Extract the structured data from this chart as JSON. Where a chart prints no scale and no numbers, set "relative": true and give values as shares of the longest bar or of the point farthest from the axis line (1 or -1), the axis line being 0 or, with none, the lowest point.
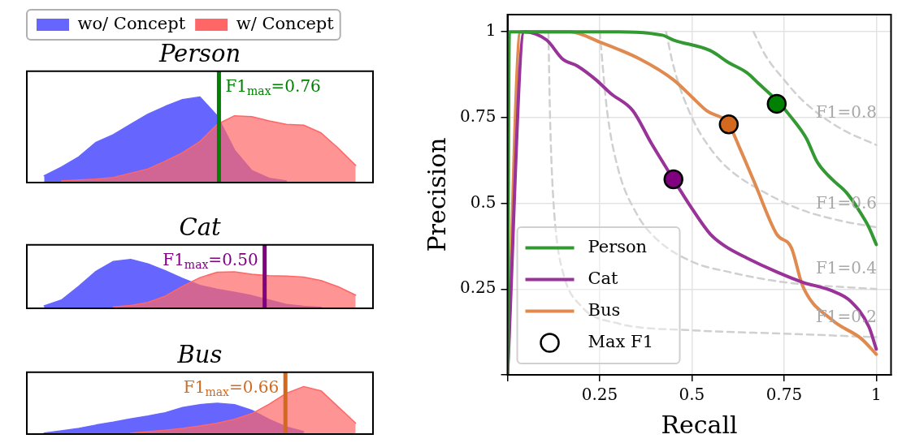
{
  "chart_data": [
    {
      "type": "area",
      "title": "Person",
      "relative": true,
      "tick_labels": false,
      "legend": "top",
      "categories": [
        null,
        null,
        null,
        null,
        null,
        null,
        null,
        null,
        null,
        null,
        null,
        null,
        null,
        null,
        null,
        null,
        null,
        null,
        null,
        null,
        null
      ],
      "series": [
        {
          "name": "wo/ Concept",
          "color": "#6666ff",
          "values": [
            null,
            0.08,
            0.18,
            0.3,
            0.47,
            0.56,
            0.68,
            0.8,
            0.89,
            0.97,
            1,
            0.78,
            0.38,
            0.14,
            0.05,
            0.02,
            null,
            null,
            null,
            null,
            null
          ]
        },
        {
          "name": "w/ Concept",
          "color": "#ff6666",
          "values": [
            null,
            null,
            0.02,
            0.03,
            0.04,
            0.06,
            0.11,
            0.16,
            0.25,
            0.35,
            0.48,
            0.68,
            0.78,
            0.77,
            0.72,
            0.68,
            0.67,
            0.58,
            0.4,
            0.2,
            null
          ]
        }
      ],
      "annotations": [
        "F1$_{max}$=0.76"
      ]
    },
    {
      "type": "area",
      "title": "Cat",
      "relative": true,
      "tick_labels": false,
      "categories": [
        null,
        null,
        null,
        null,
        null,
        null,
        null,
        null,
        null,
        null,
        null,
        null,
        null,
        null,
        null,
        null,
        null,
        null,
        null,
        null,
        null
      ],
      "series": [
        {
          "color": "#6666ff",
          "values": [
            null,
            0.05,
            0.17,
            0.45,
            0.76,
            0.96,
            1,
            0.91,
            0.77,
            0.61,
            0.47,
            0.39,
            0.33,
            0.26,
            0.17,
            0.08,
            0.04,
            0.02,
            null,
            null,
            null
          ]
        },
        {
          "color": "#ff6666",
          "values": [
            null,
            null,
            null,
            null,
            null,
            0.03,
            0.06,
            0.12,
            0.25,
            0.45,
            0.63,
            0.74,
            0.75,
            0.7,
            0.67,
            0.66,
            0.64,
            0.57,
            0.44,
            0.27,
            null
          ]
        }
      ],
      "annotations": [
        "F1$_{max}$=0.50"
      ]
    },
    {
      "type": "area",
      "title": "Bus",
      "relative": true,
      "tick_labels": false,
      "categories": [
        null,
        null,
        null,
        null,
        null,
        null,
        null,
        null,
        null,
        null,
        null,
        null,
        null,
        null,
        null,
        null,
        null,
        null,
        null,
        null,
        null
      ],
      "series": [
        {
          "color": "#6666ff",
          "values": [
            null,
            0.02,
            0.07,
            0.12,
            0.19,
            0.25,
            0.32,
            0.38,
            0.45,
            0.56,
            0.62,
            0.65,
            0.62,
            0.5,
            0.31,
            0.15,
            0.05,
            null,
            null,
            null,
            null
          ]
        },
        {
          "color": "#ff6666",
          "values": [
            null,
            null,
            null,
            null,
            null,
            null,
            0.02,
            0.05,
            0.08,
            0.12,
            0.17,
            0.23,
            0.31,
            0.43,
            0.63,
            0.86,
            1,
            0.91,
            0.57,
            0.23,
            null
          ]
        }
      ],
      "annotations": [
        "F1$_{max}$=0.66"
      ]
    },
    {
      "type": "line",
      "xlabel": "Recall",
      "ylabel": "Precision",
      "xlim": [
        0,
        1.04
      ],
      "ylim": [
        0,
        1.05
      ],
      "xticks": [
        {
          "value": 0,
          "label": null
        },
        0.25,
        0.5,
        0.75,
        1
      ],
      "yticks": [
        {
          "value": 0,
          "label": null
        },
        0.25,
        0.5,
        0.75,
        1
      ],
      "grid": true,
      "legend": "bottom left",
      "marker": "none",
      "line_style": "solid",
      "series": [
        {
          "name": "Person",
          "color": "#339933",
          "x": [
            0,
            0.005,
            0.28,
            0.42,
            0.45,
            0.55,
            0.6,
            0.65,
            0.68,
            0.73,
            0.77,
            0.81,
            0.84,
            0.88,
            0.92,
            0.97,
            0.98,
            1
          ],
          "values": [
            0,
            1,
            1,
            0.99,
            0.976,
            0.945,
            0.91,
            0.88,
            0.85,
            0.8,
            0.75,
            0.69,
            0.62,
            0.57,
            0.53,
            0.45,
            0.43,
            0.38
          ]
        },
        {
          "name": "Cat",
          "color": "#993399",
          "x": [
            0,
            0.045,
            0.106,
            0.15,
            0.19,
            0.24,
            0.28,
            0.34,
            0.39,
            0.45,
            0.5,
            0.55,
            0.59,
            0.65,
            0.73,
            0.8,
            0.88,
            0.93,
            0.98,
            1
          ],
          "values": [
            0,
            1,
            0.976,
            0.92,
            0.9,
            0.86,
            0.82,
            0.77,
            0.675,
            0.57,
            0.485,
            0.41,
            0.375,
            0.34,
            0.3,
            0.27,
            0.245,
            0.215,
            0.14,
            0.075
          ]
        },
        {
          "name": "Bus",
          "color": "#e08a4f",
          "x": [
            0,
            0.035,
            0.17,
            0.25,
            0.36,
            0.45,
            0.5,
            0.54,
            0.6,
            0.63,
            0.67,
            0.73,
            0.77,
            0.8,
            0.88,
            0.96,
            1
          ],
          "values": [
            0,
            1,
            1,
            0.97,
            0.92,
            0.86,
            0.81,
            0.77,
            0.73,
            0.66,
            0.56,
            0.41,
            0.37,
            0.26,
            0.16,
            0.105,
            0.06
          ]
        },
        {
          "type": "scatter",
          "name": "Max F1",
          "marker": "circle",
          "color": "#000000",
          "colors": [
            "#008000",
            "#d2691e",
            "#800080"
          ],
          "x": [
            0.73,
            0.6,
            0.45
          ],
          "values": [
            0.79,
            0.73,
            0.57
          ]
        },
        {
          "line_style": "dashed",
          "color": "#d0d0d0",
          "x": [
            0.111,
            0.115,
            0.12,
            0.13,
            0.15,
            0.2,
            0.3,
            0.5,
            0.75,
            1
          ],
          "values": [
            1,
            0.77,
            0.6,
            0.43,
            0.3,
            0.2,
            0.15,
            0.13,
            0.12,
            0.11
          ]
        },
        {
          "line_style": "dashed",
          "color": "#d0d0d0",
          "x": [
            0.25,
            0.27,
            0.3,
            0.35,
            0.4,
            0.5,
            0.6,
            0.75,
            1
          ],
          "values": [
            1,
            0.77,
            0.6,
            0.47,
            0.4,
            0.33,
            0.3,
            0.27,
            0.25
          ]
        },
        {
          "line_style": "dashed",
          "color": "#d0d0d0",
          "x": [
            0.43,
            0.45,
            0.5,
            0.55,
            0.6,
            0.7,
            0.8,
            0.9,
            1
          ],
          "values": [
            1,
            0.9,
            0.75,
            0.66,
            0.6,
            0.53,
            0.48,
            0.45,
            0.43
          ]
        },
        {
          "line_style": "dashed",
          "color": "#d0d0d0",
          "x": [
            0.667,
            0.7,
            0.75,
            0.8,
            0.9,
            1
          ],
          "values": [
            1,
            0.93,
            0.86,
            0.8,
            0.72,
            0.67
          ]
        }
      ],
      "annotations": [
        "F1=0.2",
        "F1=0.4",
        "F1=0.6",
        "F1=0.8"
      ]
    }
  ]
}
